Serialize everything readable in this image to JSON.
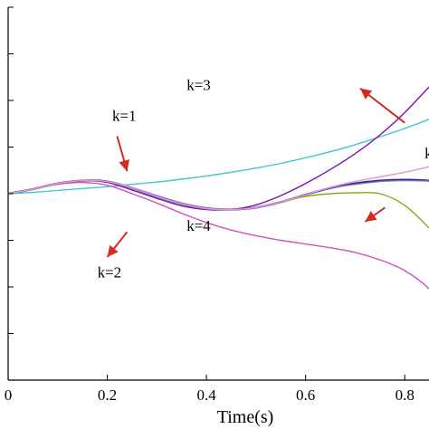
{
  "chart_data": {
    "type": "line",
    "title": "",
    "xlabel": "Time(s)",
    "ylabel": "",
    "xlim": [
      0,
      0.9
    ],
    "ylim": [
      -4,
      4
    ],
    "grid": false,
    "x_ticks": [
      0,
      0.2,
      0.4,
      0.6,
      0.8
    ],
    "x_tick_labels": [
      "0",
      "0.2",
      "0.4",
      "0.6",
      "0.8"
    ],
    "y_ticks": [
      -4,
      -3,
      -2,
      -1,
      0,
      1,
      2,
      3,
      4
    ],
    "x": [
      0,
      0.05,
      0.1,
      0.15,
      0.2,
      0.25,
      0.3,
      0.35,
      0.4,
      0.45,
      0.5,
      0.55,
      0.6,
      0.65,
      0.7,
      0.75,
      0.8,
      0.85,
      0.9
    ],
    "series": [
      {
        "color": "#2a2a7a",
        "values": [
          0.0,
          0.1,
          0.22,
          0.28,
          0.26,
          0.12,
          -0.06,
          -0.22,
          -0.32,
          -0.34,
          -0.3,
          -0.18,
          -0.02,
          0.12,
          0.22,
          0.28,
          0.3,
          0.28,
          0.24
        ]
      },
      {
        "color": "#6f6fd8",
        "values": [
          0.0,
          0.1,
          0.22,
          0.28,
          0.26,
          0.13,
          -0.04,
          -0.2,
          -0.3,
          -0.33,
          -0.29,
          -0.17,
          -0.02,
          0.12,
          0.2,
          0.26,
          0.28,
          0.27,
          0.24
        ]
      },
      {
        "color": "#40c8d0",
        "values": [
          0.0,
          0.03,
          0.07,
          0.11,
          0.15,
          0.2,
          0.25,
          0.31,
          0.38,
          0.46,
          0.55,
          0.65,
          0.77,
          0.9,
          1.05,
          1.22,
          1.4,
          1.6,
          1.82
        ]
      },
      {
        "color": "#d050c0",
        "values": [
          0.0,
          0.1,
          0.2,
          0.24,
          0.18,
          0.0,
          -0.2,
          -0.42,
          -0.62,
          -0.78,
          -0.9,
          -1.0,
          -1.08,
          -1.16,
          -1.26,
          -1.42,
          -1.65,
          -2.05,
          -2.7
        ]
      },
      {
        "color": "#7a10b8",
        "values": [
          0.0,
          0.1,
          0.22,
          0.28,
          0.24,
          0.08,
          -0.1,
          -0.26,
          -0.34,
          -0.34,
          -0.24,
          -0.04,
          0.22,
          0.52,
          0.86,
          1.26,
          1.74,
          2.3,
          2.8
        ]
      },
      {
        "color": "#8aa818",
        "values": [
          0.0,
          0.1,
          0.22,
          0.28,
          0.26,
          0.12,
          -0.06,
          -0.22,
          -0.32,
          -0.34,
          -0.3,
          -0.18,
          -0.06,
          0.0,
          0.02,
          0.0,
          -0.25,
          -0.75,
          -1.35
        ]
      },
      {
        "color": "#e890d8",
        "values": [
          0.0,
          0.1,
          0.22,
          0.28,
          0.26,
          0.12,
          -0.06,
          -0.22,
          -0.32,
          -0.34,
          -0.3,
          -0.18,
          -0.02,
          0.14,
          0.26,
          0.36,
          0.46,
          0.58,
          0.72
        ]
      }
    ],
    "annotations": [
      {
        "text": "k=1",
        "x": 0.21,
        "y": 1.56,
        "arrow_tail": [
          0.22,
          1.23
        ],
        "arrow_head": [
          0.24,
          0.48
        ]
      },
      {
        "text": "k=2",
        "x": 0.18,
        "y": -1.8,
        "arrow_tail": [
          0.24,
          -0.82
        ],
        "arrow_head": [
          0.2,
          -1.36
        ]
      },
      {
        "text": "k=3",
        "x": 0.36,
        "y": 2.22,
        "arrow_tail": [
          0.8,
          1.52
        ],
        "arrow_head": [
          0.71,
          2.26
        ]
      },
      {
        "text": "k=4",
        "x": 0.36,
        "y": -0.8,
        "arrow_tail": [
          0.76,
          -0.3
        ],
        "arrow_head": [
          0.72,
          -0.6
        ]
      },
      {
        "text": "k=",
        "x": 0.84,
        "y": 0.76
      }
    ],
    "arrow_color": "#d52a1e"
  }
}
